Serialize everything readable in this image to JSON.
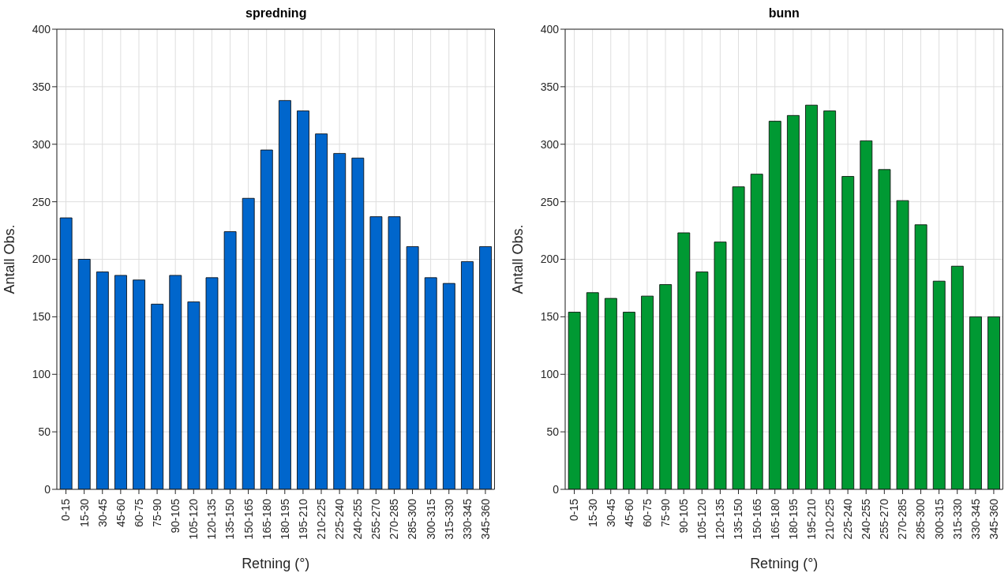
{
  "chart_data": [
    {
      "type": "bar",
      "title": "spredning",
      "xlabel": "Retning (°)",
      "ylabel": "Antall Obs.",
      "categories": [
        "0-15",
        "15-30",
        "30-45",
        "45-60",
        "60-75",
        "75-90",
        "90-105",
        "105-120",
        "120-135",
        "135-150",
        "150-165",
        "165-180",
        "180-195",
        "195-210",
        "210-225",
        "225-240",
        "240-255",
        "255-270",
        "270-285",
        "285-300",
        "300-315",
        "315-330",
        "330-345",
        "345-360"
      ],
      "values": [
        236,
        200,
        189,
        186,
        182,
        161,
        186,
        163,
        184,
        224,
        253,
        295,
        338,
        329,
        309,
        292,
        288,
        237,
        237,
        211,
        184,
        179,
        198,
        211
      ],
      "color": "#0066cc",
      "ylim": [
        0,
        400
      ],
      "yticks": [
        0,
        50,
        100,
        150,
        200,
        250,
        300,
        350,
        400
      ],
      "grid": true
    },
    {
      "type": "bar",
      "title": "bunn",
      "xlabel": "Retning (°)",
      "ylabel": "Antall Obs.",
      "categories": [
        "0-15",
        "15-30",
        "30-45",
        "45-60",
        "60-75",
        "75-90",
        "90-105",
        "105-120",
        "120-135",
        "135-150",
        "150-165",
        "165-180",
        "180-195",
        "195-210",
        "210-225",
        "225-240",
        "240-255",
        "255-270",
        "270-285",
        "285-300",
        "300-315",
        "315-330",
        "330-345",
        "345-360"
      ],
      "values": [
        154,
        171,
        166,
        154,
        168,
        178,
        223,
        189,
        215,
        263,
        274,
        320,
        325,
        334,
        329,
        272,
        303,
        278,
        251,
        230,
        181,
        194,
        150,
        150
      ],
      "color": "#009933",
      "ylim": [
        0,
        400
      ],
      "yticks": [
        0,
        50,
        100,
        150,
        200,
        250,
        300,
        350,
        400
      ],
      "grid": true
    }
  ]
}
